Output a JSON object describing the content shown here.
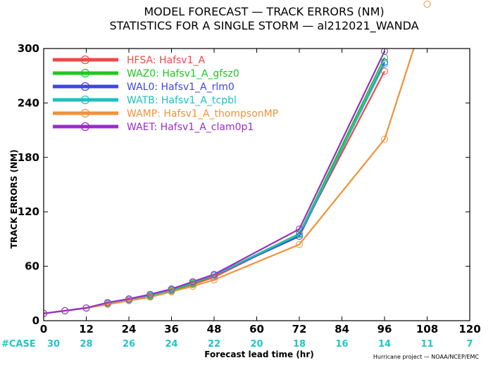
{
  "chart_data": {
    "type": "line",
    "title": "MODEL FORECAST — TRACK ERRORS (NM)",
    "subtitle": "STATISTICS FOR A SINGLE STORM — al212021_WANDA",
    "xlabel": "Forecast lead time (hr)",
    "ylabel": "TRACK ERRORS (NM)",
    "xlim": [
      0,
      120
    ],
    "ylim": [
      0,
      300
    ],
    "x_ticks": [
      0,
      12,
      24,
      36,
      48,
      60,
      72,
      84,
      96,
      108,
      120
    ],
    "y_ticks": [
      0,
      60,
      120,
      180,
      240,
      300
    ],
    "y_tick_labels": [
      "0",
      "60",
      "120",
      "180",
      "240",
      "300"
    ],
    "grid": false,
    "legend_position": "top-left",
    "case_label": "#CASE",
    "case_counts": [
      "30",
      "28",
      "26",
      "24",
      "22",
      "20",
      "18",
      "16",
      "14",
      "11",
      "7"
    ],
    "credit": "Hurricane project — NOAA/NCEP/EMC",
    "series": [
      {
        "name": "HFSA: Hafsv1_A",
        "color": "#f04848",
        "x": [
          0,
          6,
          12,
          18,
          24,
          30,
          36,
          42,
          48,
          72,
          96
        ],
        "y": [
          8,
          11,
          14,
          19,
          23,
          27,
          33,
          40,
          48,
          95,
          275
        ]
      },
      {
        "name": "WAZ0: Hafsv1_A_gfsz0",
        "color": "#1ec81e",
        "x": [
          0,
          6,
          12,
          18,
          24,
          30,
          36,
          42,
          48,
          72,
          96
        ],
        "y": [
          8,
          11,
          14,
          19,
          23,
          27,
          33,
          41,
          50,
          96,
          290
        ]
      },
      {
        "name": "WAL0: Hafsv1_A_rlm0",
        "color": "#3c46e6",
        "x": [
          0,
          6,
          12,
          18,
          24,
          30,
          36,
          42,
          48,
          72,
          96
        ],
        "y": [
          8,
          11,
          14,
          19,
          23,
          28,
          34,
          42,
          50,
          93,
          285
        ]
      },
      {
        "name": "WATB: Hafsv1_A_tcpbl",
        "color": "#1ec0c0",
        "x": [
          0,
          6,
          12,
          18,
          24,
          30,
          36,
          42,
          48,
          72,
          96
        ],
        "y": [
          8,
          11,
          14,
          19,
          23,
          28,
          34,
          42,
          50,
          95,
          283
        ]
      },
      {
        "name": "WAMP: Hafsv1_A_thompsonMP",
        "color": "#f0913a",
        "x": [
          0,
          6,
          12,
          18,
          24,
          30,
          36,
          42,
          48,
          72,
          96,
          108
        ],
        "y": [
          8,
          11,
          14,
          18,
          22,
          26,
          32,
          38,
          45,
          84,
          200,
          346
        ]
      },
      {
        "name": "WAET: Hafsv1_A_clam0p1",
        "color": "#9a2cc8",
        "x": [
          0,
          6,
          12,
          18,
          24,
          30,
          36,
          42,
          48,
          72,
          96
        ],
        "y": [
          8,
          11,
          14,
          20,
          24,
          29,
          35,
          43,
          51,
          101,
          297
        ]
      }
    ]
  }
}
